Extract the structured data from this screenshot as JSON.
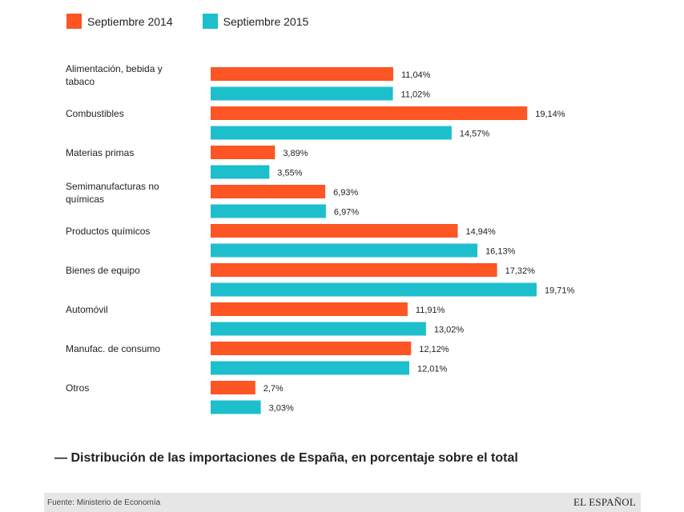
{
  "legend": [
    {
      "label": "Septiembre 2014",
      "color": "#fd5523"
    },
    {
      "label": "Septiembre 2015",
      "color": "#1ebfcc"
    }
  ],
  "chart_data": {
    "type": "bar",
    "orientation": "horizontal",
    "title": "Distribución de las importaciones de España, en porcentaje sobre el total",
    "categories": [
      [
        "Alimentación, bebida y",
        "tabaco"
      ],
      [
        "Combustibles"
      ],
      [
        "Materias primas"
      ],
      [
        "Semimanufacturas no",
        "químicas"
      ],
      [
        "Productos químicos"
      ],
      [
        "Bienes de equipo"
      ],
      [
        "Automóvil"
      ],
      [
        "Manufac. de consumo"
      ],
      [
        "Otros"
      ]
    ],
    "series": [
      {
        "name": "Septiembre 2014",
        "color": "#fd5523",
        "values": [
          11.04,
          19.14,
          3.89,
          6.93,
          14.94,
          17.32,
          11.91,
          12.12,
          2.7
        ],
        "labels": [
          "11,04%",
          "19,14%",
          "3,89%",
          "6,93%",
          "14,94%",
          "17,32%",
          "11,91%",
          "12,12%",
          "2,7%"
        ]
      },
      {
        "name": "Septiembre 2015",
        "color": "#1ebfcc",
        "values": [
          11.02,
          14.57,
          3.55,
          6.97,
          16.13,
          19.71,
          13.02,
          12.01,
          3.03
        ],
        "labels": [
          "11,02%",
          "14,57%",
          "3,55%",
          "6,97%",
          "16,13%",
          "19,71%",
          "13,02%",
          "12,01%",
          "3,03%"
        ]
      }
    ],
    "xlim": [
      0,
      19.71
    ],
    "grid": false,
    "legend_position": "top-left"
  },
  "caption": "— Distribución de las importaciones de España, en porcentaje sobre el total",
  "footer": {
    "source": "Fuente: Ministerio de Economía",
    "brand": "EL ESPAÑOL"
  }
}
